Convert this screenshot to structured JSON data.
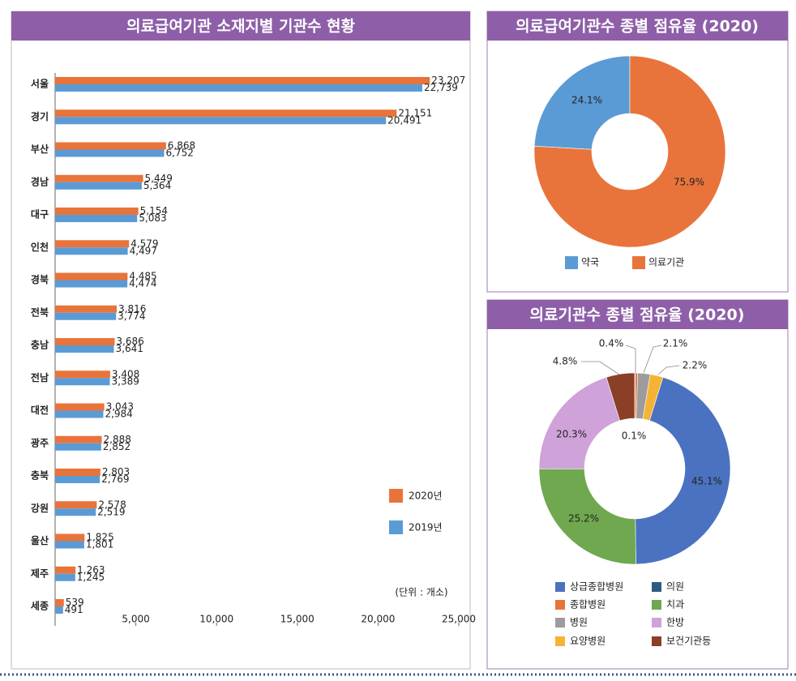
{
  "chart_data": [
    {
      "type": "bar",
      "horizontal": true,
      "title": "의료급여기관 소재지별 기관수 현황",
      "categories": [
        "서울",
        "경기",
        "부산",
        "경남",
        "대구",
        "인천",
        "경북",
        "전북",
        "충남",
        "전남",
        "대전",
        "광주",
        "충북",
        "강원",
        "울산",
        "제주",
        "세종"
      ],
      "series": [
        {
          "name": "2020년",
          "color": "#e8743b",
          "label_color": "#ef8a1c",
          "values": [
            23207,
            21151,
            6868,
            5449,
            5154,
            4579,
            4485,
            3816,
            3686,
            3408,
            3043,
            2888,
            2803,
            2578,
            1825,
            1263,
            539
          ],
          "value_labels": [
            "23,207",
            "21,151",
            "6,868",
            "5,449",
            "5,154",
            "4,579",
            "4,485",
            "3,816",
            "3,686",
            "3,408",
            "3,043",
            "2,888",
            "2,803",
            "2,578",
            "1,825",
            "1,263",
            "539"
          ]
        },
        {
          "name": "2019년",
          "color": "#5a9bd5",
          "label_color": "#3f7fbf",
          "values": [
            22739,
            20491,
            6752,
            5364,
            5083,
            4497,
            4474,
            3774,
            3641,
            3389,
            2984,
            2852,
            2769,
            2519,
            1801,
            1245,
            491
          ],
          "value_labels": [
            "22,739",
            "20,491",
            "6,752",
            "5,364",
            "5,083",
            "4,497",
            "4,474",
            "3,774",
            "3,641",
            "3,389",
            "2,984",
            "2,852",
            "2,769",
            "2,519",
            "1,801",
            "1,245",
            "491"
          ]
        }
      ],
      "xlim": [
        0,
        25000
      ],
      "xticks": [
        {
          "value": 5000,
          "label": "5,000"
        },
        {
          "value": 10000,
          "label": "10,000"
        },
        {
          "value": 15000,
          "label": "15,000"
        },
        {
          "value": 20000,
          "label": "20,000"
        },
        {
          "value": 25000,
          "label": "25,000"
        }
      ],
      "annotation": "(단위 : 개소)"
    },
    {
      "type": "pie",
      "donut": true,
      "title": "의료급여기관수 종별 점유율 (2020)",
      "categories": [
        "약국",
        "의료기관"
      ],
      "values": [
        24.1,
        75.9
      ],
      "value_labels": [
        "24.1%",
        "75.9%"
      ],
      "colors": [
        "#5b9bd5",
        "#e8743b"
      ]
    },
    {
      "type": "pie",
      "donut": true,
      "title": "의료기관수 종별 점유율 (2020)",
      "categories": [
        "의원",
        "종합병원",
        "병원",
        "요양병원",
        "상급종합병원",
        "치과",
        "한방",
        "보건기관등"
      ],
      "values": [
        0.1,
        0.4,
        2.1,
        2.2,
        45.1,
        25.2,
        20.3,
        4.8
      ],
      "value_labels": [
        "0.1%",
        "0.4%",
        "2.1%",
        "2.2%",
        "45.1%",
        "25.2%",
        "20.3%",
        "4.8%"
      ],
      "colors": [
        "#2e5b86",
        "#e8743b",
        "#9c9c9c",
        "#f5b335",
        "#4a72c0",
        "#6fa84f",
        "#cfa2da",
        "#8b3f26"
      ]
    }
  ]
}
